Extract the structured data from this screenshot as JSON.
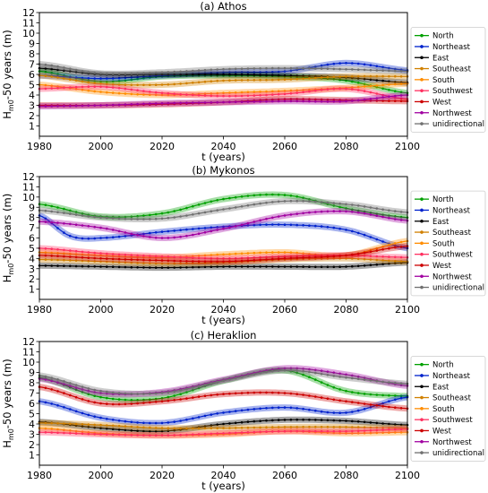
{
  "chart_data": [
    {
      "type": "line",
      "title": "(a) Athos",
      "xlabel": "t (years)",
      "ylabel_main": "H",
      "ylabel_sub": "m0",
      "ylabel_rest": "-50 years (m)",
      "xlim": [
        1980,
        2100
      ],
      "ylim": [
        0,
        12
      ],
      "xticks": [
        1980,
        2000,
        2020,
        2040,
        2060,
        2080,
        2100
      ],
      "yticks": [
        1,
        2,
        3,
        4,
        5,
        6,
        7,
        8,
        9,
        10,
        11,
        12
      ],
      "legend_position": "right",
      "series": [
        {
          "name": "North",
          "color": "#00a000",
          "x": [
            1980,
            2000,
            2020,
            2040,
            2060,
            2080,
            2100
          ],
          "values": [
            6.3,
            5.3,
            5.8,
            5.9,
            5.8,
            5.4,
            4.2
          ]
        },
        {
          "name": "Northeast",
          "color": "#0022cc",
          "x": [
            1980,
            2000,
            2020,
            2040,
            2060,
            2080,
            2100
          ],
          "values": [
            5.9,
            5.6,
            5.9,
            6.2,
            6.3,
            7.1,
            6.4
          ]
        },
        {
          "name": "East",
          "color": "#000000",
          "x": [
            1980,
            2000,
            2020,
            2040,
            2060,
            2080,
            2100
          ],
          "values": [
            6.6,
            6.0,
            6.0,
            6.0,
            5.9,
            5.7,
            5.2
          ]
        },
        {
          "name": "Southeast",
          "color": "#d08000",
          "x": [
            1980,
            2000,
            2020,
            2040,
            2060,
            2080,
            2100
          ],
          "values": [
            5.9,
            5.1,
            5.0,
            5.4,
            5.5,
            5.8,
            5.8
          ]
        },
        {
          "name": "South",
          "color": "#ff8c00",
          "x": [
            1980,
            2000,
            2020,
            2040,
            2060,
            2080,
            2100
          ],
          "values": [
            5.0,
            4.3,
            4.0,
            4.2,
            4.4,
            4.7,
            5.1
          ]
        },
        {
          "name": "Southwest",
          "color": "#ff3060",
          "x": [
            1980,
            2000,
            2020,
            2040,
            2060,
            2080,
            2100
          ],
          "values": [
            4.6,
            4.8,
            4.2,
            3.9,
            4.1,
            4.6,
            3.6
          ]
        },
        {
          "name": "West",
          "color": "#cc0000",
          "x": [
            1980,
            2000,
            2020,
            2040,
            2060,
            2080,
            2100
          ],
          "values": [
            3.0,
            3.0,
            3.1,
            3.3,
            3.6,
            3.5,
            3.4
          ]
        },
        {
          "name": "Northwest",
          "color": "#a000a0",
          "x": [
            1980,
            2000,
            2020,
            2040,
            2060,
            2080,
            2100
          ],
          "values": [
            2.9,
            3.0,
            3.2,
            3.3,
            3.4,
            3.4,
            4.0
          ]
        },
        {
          "name": "unidirectional",
          "color": "#707070",
          "x": [
            1980,
            2000,
            2020,
            2040,
            2060,
            2080,
            2100
          ],
          "values": [
            7.0,
            6.1,
            6.2,
            6.5,
            6.6,
            6.5,
            6.3
          ]
        }
      ]
    },
    {
      "type": "line",
      "title": "(b) Mykonos",
      "xlabel": "t (years)",
      "ylabel_main": "H",
      "ylabel_sub": "m0",
      "ylabel_rest": "-50 years (m)",
      "xlim": [
        1980,
        2100
      ],
      "ylim": [
        0,
        12
      ],
      "xticks": [
        1980,
        2000,
        2020,
        2040,
        2060,
        2080,
        2100
      ],
      "yticks": [
        1,
        2,
        3,
        4,
        5,
        6,
        7,
        8,
        9,
        10,
        11,
        12
      ],
      "legend_position": "right",
      "series": [
        {
          "name": "North",
          "color": "#00a000",
          "x": [
            1980,
            2000,
            2020,
            2040,
            2060,
            2080,
            2100
          ],
          "values": [
            9.3,
            8.1,
            8.4,
            9.8,
            10.2,
            8.9,
            8.0
          ]
        },
        {
          "name": "Northeast",
          "color": "#0022cc",
          "x": [
            1980,
            1990,
            2000,
            2020,
            2040,
            2060,
            2080,
            2100
          ],
          "values": [
            8.2,
            6.2,
            6.0,
            6.6,
            7.1,
            7.3,
            6.8,
            5.0
          ]
        },
        {
          "name": "East",
          "color": "#000000",
          "x": [
            1980,
            2000,
            2020,
            2040,
            2060,
            2080,
            2100
          ],
          "values": [
            3.3,
            3.2,
            3.1,
            3.2,
            3.2,
            3.2,
            3.6
          ]
        },
        {
          "name": "Southeast",
          "color": "#d08000",
          "x": [
            1980,
            2000,
            2020,
            2040,
            2060,
            2080,
            2100
          ],
          "values": [
            3.9,
            3.7,
            3.5,
            3.6,
            3.9,
            4.0,
            3.7
          ]
        },
        {
          "name": "South",
          "color": "#ff8c00",
          "x": [
            1980,
            2000,
            2020,
            2040,
            2060,
            2080,
            2100
          ],
          "values": [
            4.6,
            4.3,
            4.1,
            4.4,
            4.6,
            4.3,
            5.7
          ]
        },
        {
          "name": "Southwest",
          "color": "#ff3060",
          "x": [
            1980,
            2000,
            2020,
            2040,
            2060,
            2080,
            2100
          ],
          "values": [
            5.0,
            4.5,
            4.2,
            4.0,
            4.2,
            4.3,
            4.1
          ]
        },
        {
          "name": "West",
          "color": "#cc0000",
          "x": [
            1980,
            2000,
            2020,
            2040,
            2060,
            2080,
            2100
          ],
          "values": [
            4.3,
            4.0,
            3.8,
            3.7,
            4.0,
            4.3,
            5.2
          ]
        },
        {
          "name": "Northwest",
          "color": "#a000a0",
          "x": [
            1980,
            2000,
            2020,
            2040,
            2060,
            2080,
            2100
          ],
          "values": [
            7.6,
            7.0,
            6.0,
            6.9,
            8.2,
            8.6,
            7.7
          ]
        },
        {
          "name": "unidirectional",
          "color": "#707070",
          "x": [
            1980,
            2000,
            2020,
            2040,
            2060,
            2080,
            2100
          ],
          "values": [
            8.7,
            8.0,
            7.9,
            8.8,
            9.6,
            9.3,
            8.5
          ]
        }
      ]
    },
    {
      "type": "line",
      "title": "(c) Heraklion",
      "xlabel": "t (years)",
      "ylabel_main": "H",
      "ylabel_sub": "m0",
      "ylabel_rest": "-50 years (m)",
      "xlim": [
        1980,
        2100
      ],
      "ylim": [
        0,
        12
      ],
      "xticks": [
        1980,
        2000,
        2020,
        2040,
        2060,
        2080,
        2100
      ],
      "yticks": [
        1,
        2,
        3,
        4,
        5,
        6,
        7,
        8,
        9,
        10,
        11,
        12
      ],
      "legend_position": "right",
      "series": [
        {
          "name": "North",
          "color": "#00a000",
          "x": [
            1980,
            2000,
            2020,
            2040,
            2060,
            2080,
            2100
          ],
          "values": [
            8.5,
            6.6,
            6.5,
            8.2,
            9.2,
            7.2,
            6.7
          ]
        },
        {
          "name": "Northeast",
          "color": "#0022cc",
          "x": [
            1980,
            2000,
            2020,
            2040,
            2060,
            2080,
            2100
          ],
          "values": [
            6.2,
            4.6,
            4.1,
            5.1,
            5.6,
            5.1,
            6.6
          ]
        },
        {
          "name": "East",
          "color": "#000000",
          "x": [
            1980,
            2000,
            2020,
            2040,
            2060,
            2080,
            2100
          ],
          "values": [
            4.2,
            3.6,
            3.3,
            4.0,
            4.4,
            4.3,
            3.9
          ]
        },
        {
          "name": "Southeast",
          "color": "#d08000",
          "x": [
            1980,
            2000,
            2020,
            2040,
            2060,
            2080,
            2100
          ],
          "values": [
            4.1,
            3.9,
            3.6,
            3.6,
            3.7,
            3.7,
            3.6
          ]
        },
        {
          "name": "South",
          "color": "#ff8c00",
          "x": [
            1980,
            2000,
            2020,
            2040,
            2060,
            2080,
            2100
          ],
          "values": [
            3.6,
            3.1,
            2.9,
            3.0,
            3.3,
            3.1,
            3.2
          ]
        },
        {
          "name": "Southwest",
          "color": "#ff3060",
          "x": [
            1980,
            2000,
            2020,
            2040,
            2060,
            2080,
            2100
          ],
          "values": [
            3.2,
            3.0,
            2.9,
            3.1,
            3.3,
            3.3,
            3.5
          ]
        },
        {
          "name": "West",
          "color": "#cc0000",
          "x": [
            1980,
            2000,
            2020,
            2040,
            2060,
            2080,
            2100
          ],
          "values": [
            7.6,
            6.0,
            6.2,
            6.9,
            7.0,
            6.2,
            5.5
          ]
        },
        {
          "name": "Northwest",
          "color": "#a000a0",
          "x": [
            1980,
            2000,
            2020,
            2040,
            2060,
            2080,
            2100
          ],
          "values": [
            8.4,
            7.0,
            7.1,
            8.3,
            9.4,
            8.8,
            7.7
          ]
        },
        {
          "name": "unidirectional",
          "color": "#707070",
          "x": [
            1980,
            2000,
            2020,
            2040,
            2060,
            2080,
            2100
          ],
          "values": [
            8.7,
            7.2,
            7.0,
            8.2,
            9.2,
            8.5,
            7.9
          ]
        }
      ]
    }
  ]
}
